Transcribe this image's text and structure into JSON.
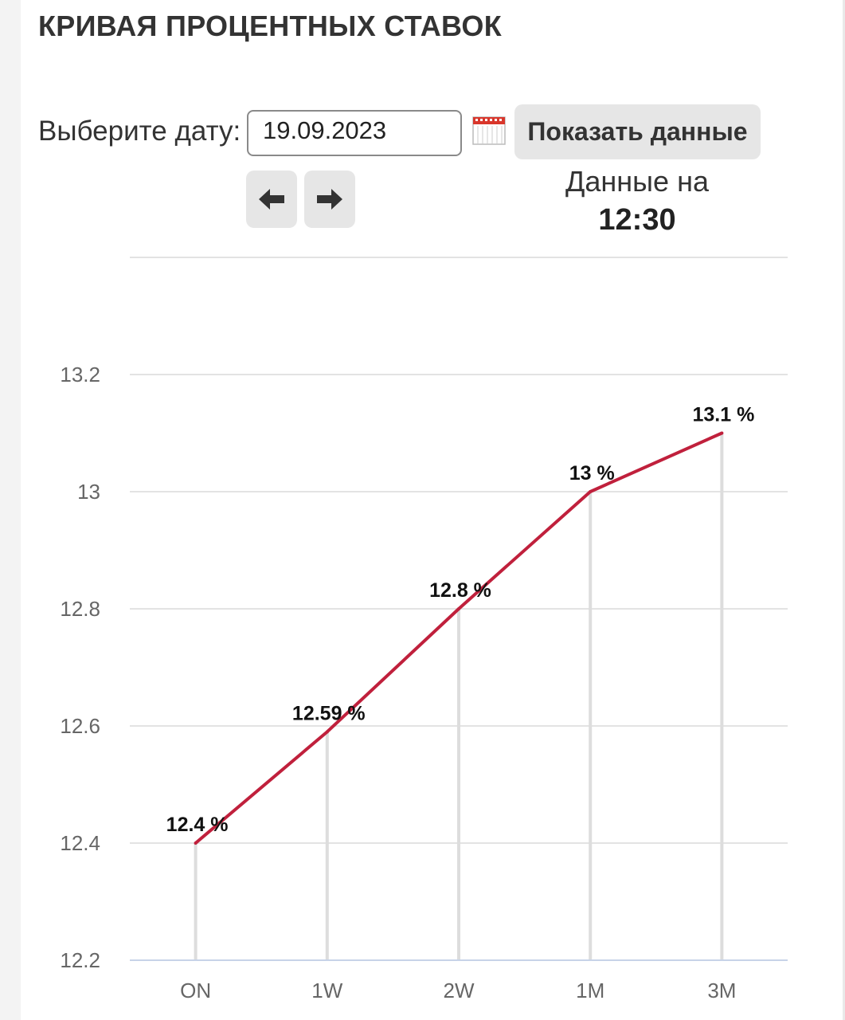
{
  "title": "КРИВАЯ ПРОЦЕНТНЫХ СТАВОК",
  "date_picker": {
    "label": "Выберите дату:",
    "value": "19.09.2023",
    "calendar_icon": "calendar-icon",
    "show_button": "Показать данные",
    "prev_icon": "arrow-left-icon",
    "next_icon": "arrow-right-icon"
  },
  "data_as_of": {
    "label": "Данные на",
    "time": "12:30"
  },
  "colors": {
    "line": "#c0203c",
    "grid": "#e3e3e3",
    "baseline": "#c7d3e8",
    "drop_line": "#dddddd",
    "button_bg": "#e6e6e6",
    "calendar_accent": "#d9362b"
  },
  "chart_data": {
    "type": "line",
    "categories": [
      "ON",
      "1W",
      "2W",
      "1M",
      "3M"
    ],
    "values": [
      12.4,
      12.59,
      12.8,
      13,
      13.1
    ],
    "data_labels": [
      "12.4 %",
      "12.59 %",
      "12.8 %",
      "13 %",
      "13.1 %"
    ],
    "y_ticks": [
      "12.2",
      "12.4",
      "12.6",
      "12.8",
      "13",
      "13.2"
    ],
    "ylim": [
      12.2,
      13.4
    ],
    "grid": true,
    "drop_lines": true,
    "legend": "none"
  }
}
